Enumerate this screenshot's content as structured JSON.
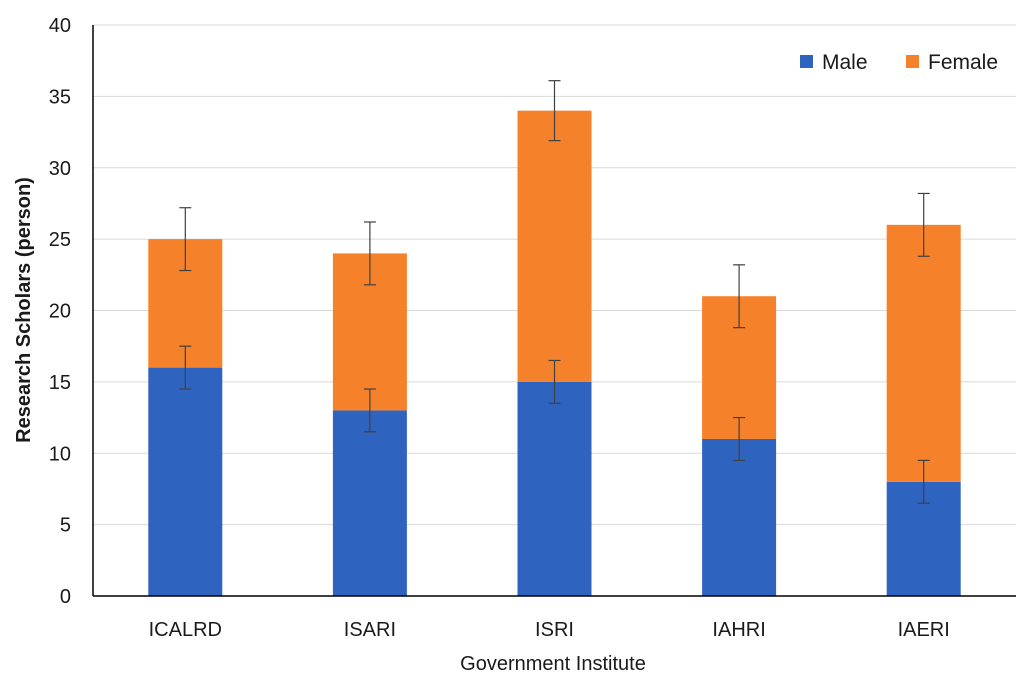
{
  "chart_data": {
    "type": "bar",
    "stacked": true,
    "title": "",
    "xlabel": "Government Institute",
    "ylabel": "Research Scholars (person)",
    "categories": [
      "ICALRD",
      "ISARI",
      "ISRI",
      "IAHRI",
      "IAERI"
    ],
    "series": [
      {
        "name": "Male",
        "color": "#2e64c0",
        "values": [
          16,
          13,
          15,
          11,
          8
        ],
        "error": [
          1.5,
          1.5,
          1.5,
          1.5,
          1.5
        ]
      },
      {
        "name": "Female",
        "color": "#f5822a",
        "values": [
          9,
          11,
          19,
          10,
          18
        ],
        "error": [
          2.2,
          2.2,
          2.1,
          2.2,
          2.2
        ]
      }
    ],
    "ylim": [
      0,
      40
    ],
    "yticks": [
      0,
      5,
      10,
      15,
      20,
      25,
      30,
      35,
      40
    ],
    "grid": true,
    "legend_position": "top-right"
  }
}
